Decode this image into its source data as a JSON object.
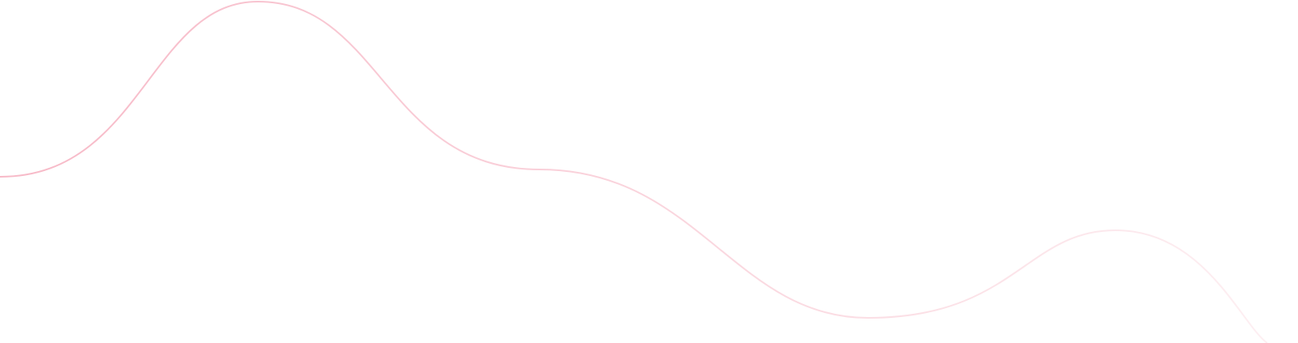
{
  "decoration": {
    "type": "wave-line",
    "stroke_color_start": "#f7b9c7",
    "stroke_color_end": "#fdeff2",
    "background": "#ffffff"
  }
}
